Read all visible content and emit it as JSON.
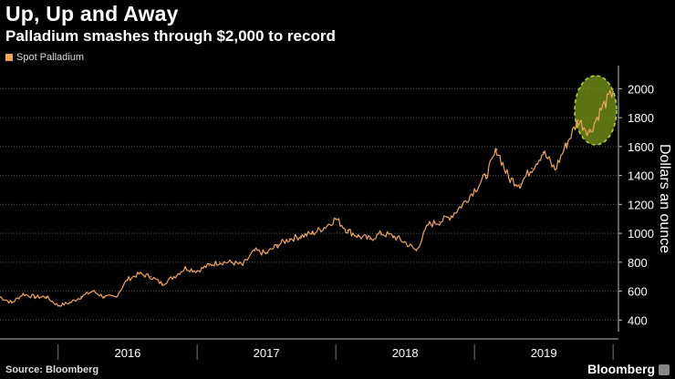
{
  "header": {
    "title": "Up, Up and Away",
    "subtitle": "Palladium smashes through $2,000 to record"
  },
  "legend": {
    "label": "Spot Palladium"
  },
  "footer": {
    "source": "Source: Bloomberg",
    "brand": "Bloomberg"
  },
  "colors": {
    "line": "#f2a45c",
    "highlight_fill": "#7a9a1a",
    "highlight_stroke": "#b7d63a",
    "grid": "#555555"
  },
  "chart_data": {
    "type": "line",
    "title": "Up, Up and Away",
    "subtitle": "Palladium smashes through $2,000 to record",
    "ylabel": "Dollars an ounce",
    "xlabel": "",
    "series": [
      {
        "name": "Spot Palladium",
        "x": [
          "2015-08-01",
          "2015-09-01",
          "2015-10-01",
          "2015-11-01",
          "2015-12-01",
          "2016-01-01",
          "2016-02-01",
          "2016-03-01",
          "2016-04-01",
          "2016-05-01",
          "2016-06-01",
          "2016-07-01",
          "2016-08-01",
          "2016-09-01",
          "2016-10-01",
          "2016-11-01",
          "2016-12-01",
          "2017-01-01",
          "2017-02-01",
          "2017-03-01",
          "2017-04-01",
          "2017-05-01",
          "2017-06-01",
          "2017-07-01",
          "2017-08-01",
          "2017-09-01",
          "2017-10-01",
          "2017-11-01",
          "2017-12-01",
          "2018-01-01",
          "2018-02-01",
          "2018-03-01",
          "2018-04-01",
          "2018-05-01",
          "2018-06-01",
          "2018-07-01",
          "2018-08-01",
          "2018-09-01",
          "2018-10-01",
          "2018-11-01",
          "2018-12-01",
          "2019-01-01",
          "2019-02-01",
          "2019-03-01",
          "2019-04-01",
          "2019-05-01",
          "2019-06-01",
          "2019-07-01",
          "2019-08-01",
          "2019-09-01",
          "2019-10-01",
          "2019-11-01",
          "2019-12-01",
          "2020-01-01"
        ],
        "values": [
          560,
          520,
          580,
          560,
          560,
          500,
          520,
          560,
          600,
          560,
          560,
          680,
          720,
          700,
          650,
          700,
          760,
          740,
          780,
          800,
          800,
          780,
          880,
          860,
          920,
          960,
          980,
          1000,
          1040,
          1100,
          1020,
          980,
          960,
          1000,
          980,
          940,
          880,
          1060,
          1080,
          1120,
          1200,
          1300,
          1400,
          1580,
          1380,
          1340,
          1450,
          1560,
          1440,
          1620,
          1780,
          1700,
          1860,
          1980
        ]
      }
    ],
    "x_tick_labels": [
      "2016",
      "2017",
      "2018",
      "2019"
    ],
    "y_ticks": [
      400,
      600,
      800,
      1000,
      1200,
      1400,
      1600,
      1800,
      2000
    ],
    "ylim": [
      320,
      2160
    ],
    "grid": true,
    "y_axis_position": "right",
    "annotation": "highlighted ellipse around the record high",
    "legend_position": "top-left"
  }
}
